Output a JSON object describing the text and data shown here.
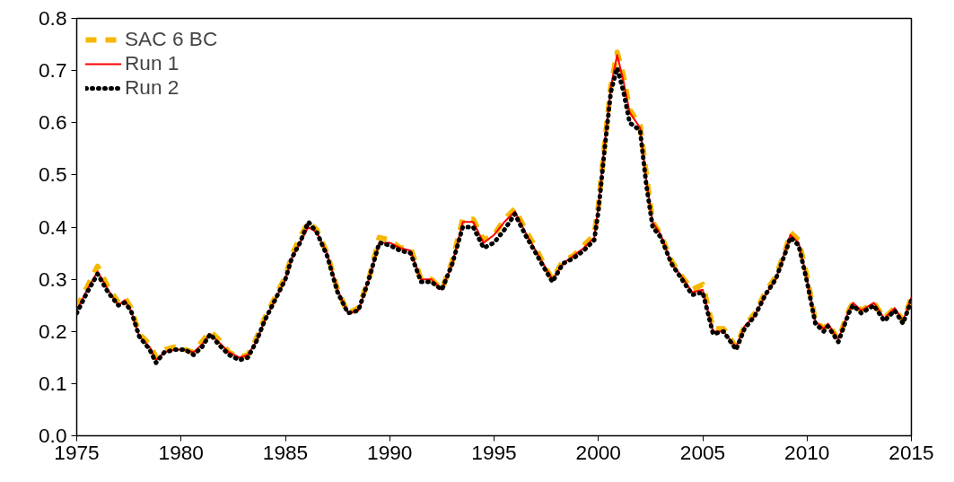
{
  "chart_data": {
    "type": "line",
    "legend": "top left",
    "grid": false,
    "marker": "none",
    "x": [
      1975.0,
      1975.5,
      1976.0,
      1976.5,
      1977.0,
      1977.3,
      1977.6,
      1978.0,
      1978.5,
      1978.8,
      1979.2,
      1979.7,
      1980.2,
      1980.6,
      1981.0,
      1981.4,
      1981.8,
      1982.3,
      1982.8,
      1983.2,
      1983.6,
      1984.0,
      1984.5,
      1985.0,
      1985.3,
      1985.7,
      1986.1,
      1986.5,
      1987.0,
      1987.5,
      1988.0,
      1988.5,
      1989.0,
      1989.5,
      1990.0,
      1990.5,
      1991.0,
      1991.5,
      1992.0,
      1992.5,
      1993.0,
      1993.5,
      1994.0,
      1994.5,
      1995.0,
      1995.5,
      1996.0,
      1996.5,
      1997.0,
      1997.5,
      1997.8,
      1998.3,
      1998.8,
      1999.3,
      1999.8,
      2000.0,
      2000.3,
      2000.6,
      2000.9,
      2001.2,
      2001.5,
      2002.0,
      2002.3,
      2002.6,
      2003.0,
      2003.5,
      2004.0,
      2004.5,
      2005.0,
      2005.5,
      2006.0,
      2006.6,
      2007.0,
      2007.5,
      2008.0,
      2008.5,
      2009.0,
      2009.2,
      2009.6,
      2010.0,
      2010.4,
      2010.8,
      2011.0,
      2011.5,
      2012.0,
      2012.2,
      2012.6,
      2013.2,
      2013.7,
      2014.2,
      2014.6,
      2015.0
    ],
    "series": [
      {
        "name": "SAC 6 BC",
        "color": "#f5b800",
        "line_style": "dashed",
        "values": [
          0.245,
          0.285,
          0.325,
          0.285,
          0.255,
          0.265,
          0.245,
          0.195,
          0.175,
          0.15,
          0.165,
          0.17,
          0.165,
          0.16,
          0.18,
          0.2,
          0.185,
          0.16,
          0.15,
          0.155,
          0.185,
          0.225,
          0.265,
          0.305,
          0.345,
          0.38,
          0.41,
          0.395,
          0.35,
          0.28,
          0.235,
          0.245,
          0.3,
          0.38,
          0.375,
          0.36,
          0.36,
          0.3,
          0.3,
          0.28,
          0.335,
          0.415,
          0.415,
          0.375,
          0.385,
          0.415,
          0.435,
          0.395,
          0.36,
          0.32,
          0.3,
          0.335,
          0.345,
          0.365,
          0.385,
          0.44,
          0.56,
          0.67,
          0.735,
          0.69,
          0.625,
          0.595,
          0.5,
          0.41,
          0.385,
          0.335,
          0.305,
          0.28,
          0.29,
          0.205,
          0.205,
          0.17,
          0.21,
          0.235,
          0.275,
          0.305,
          0.36,
          0.39,
          0.375,
          0.305,
          0.22,
          0.205,
          0.215,
          0.185,
          0.24,
          0.255,
          0.24,
          0.255,
          0.225,
          0.245,
          0.22,
          0.265
        ]
      },
      {
        "name": "Run 1",
        "color": "#ff0000",
        "line_style": "solid",
        "values": [
          0.24,
          0.28,
          0.315,
          0.28,
          0.25,
          0.26,
          0.24,
          0.19,
          0.17,
          0.145,
          0.16,
          0.165,
          0.165,
          0.16,
          0.175,
          0.195,
          0.18,
          0.16,
          0.15,
          0.155,
          0.18,
          0.22,
          0.26,
          0.3,
          0.34,
          0.37,
          0.4,
          0.39,
          0.35,
          0.28,
          0.235,
          0.24,
          0.3,
          0.37,
          0.37,
          0.36,
          0.355,
          0.3,
          0.3,
          0.28,
          0.33,
          0.41,
          0.41,
          0.37,
          0.385,
          0.41,
          0.43,
          0.39,
          0.355,
          0.32,
          0.3,
          0.33,
          0.345,
          0.36,
          0.38,
          0.44,
          0.56,
          0.67,
          0.73,
          0.68,
          0.62,
          0.59,
          0.49,
          0.41,
          0.385,
          0.33,
          0.305,
          0.275,
          0.28,
          0.2,
          0.2,
          0.17,
          0.21,
          0.23,
          0.27,
          0.3,
          0.36,
          0.385,
          0.37,
          0.3,
          0.22,
          0.205,
          0.215,
          0.185,
          0.24,
          0.255,
          0.24,
          0.255,
          0.225,
          0.245,
          0.22,
          0.265
        ]
      },
      {
        "name": "Run 2",
        "color": "#000000",
        "line_style": "dotted",
        "values": [
          0.235,
          0.275,
          0.31,
          0.275,
          0.25,
          0.255,
          0.24,
          0.19,
          0.165,
          0.14,
          0.16,
          0.165,
          0.165,
          0.155,
          0.17,
          0.195,
          0.175,
          0.155,
          0.145,
          0.15,
          0.18,
          0.22,
          0.26,
          0.3,
          0.34,
          0.37,
          0.41,
          0.39,
          0.345,
          0.275,
          0.235,
          0.24,
          0.3,
          0.37,
          0.365,
          0.355,
          0.35,
          0.295,
          0.295,
          0.28,
          0.33,
          0.4,
          0.4,
          0.36,
          0.37,
          0.395,
          0.425,
          0.385,
          0.35,
          0.315,
          0.295,
          0.33,
          0.34,
          0.355,
          0.375,
          0.43,
          0.55,
          0.66,
          0.705,
          0.66,
          0.6,
          0.585,
          0.48,
          0.4,
          0.38,
          0.33,
          0.3,
          0.27,
          0.275,
          0.195,
          0.2,
          0.165,
          0.205,
          0.23,
          0.27,
          0.3,
          0.355,
          0.38,
          0.365,
          0.295,
          0.215,
          0.2,
          0.21,
          0.18,
          0.235,
          0.25,
          0.235,
          0.25,
          0.22,
          0.24,
          0.215,
          0.26
        ]
      }
    ],
    "xlim": [
      1975,
      2015
    ],
    "xticks": [
      1975,
      1980,
      1985,
      1990,
      1995,
      2000,
      2005,
      2010,
      2015
    ],
    "ylim": [
      0,
      0.8
    ],
    "yticks": [
      {
        "value": 0,
        "label": "0.0"
      },
      {
        "value": 0.1,
        "label": "0.1"
      },
      {
        "value": 0.2,
        "label": "0.2"
      },
      {
        "value": 0.3,
        "label": "0.3"
      },
      {
        "value": 0.4,
        "label": "0.4"
      },
      {
        "value": 0.5,
        "label": "0.5"
      },
      {
        "value": 0.6,
        "label": "0.6"
      },
      {
        "value": 0.7,
        "label": "0.7"
      },
      {
        "value": 0.8,
        "label": "0.8"
      }
    ]
  }
}
